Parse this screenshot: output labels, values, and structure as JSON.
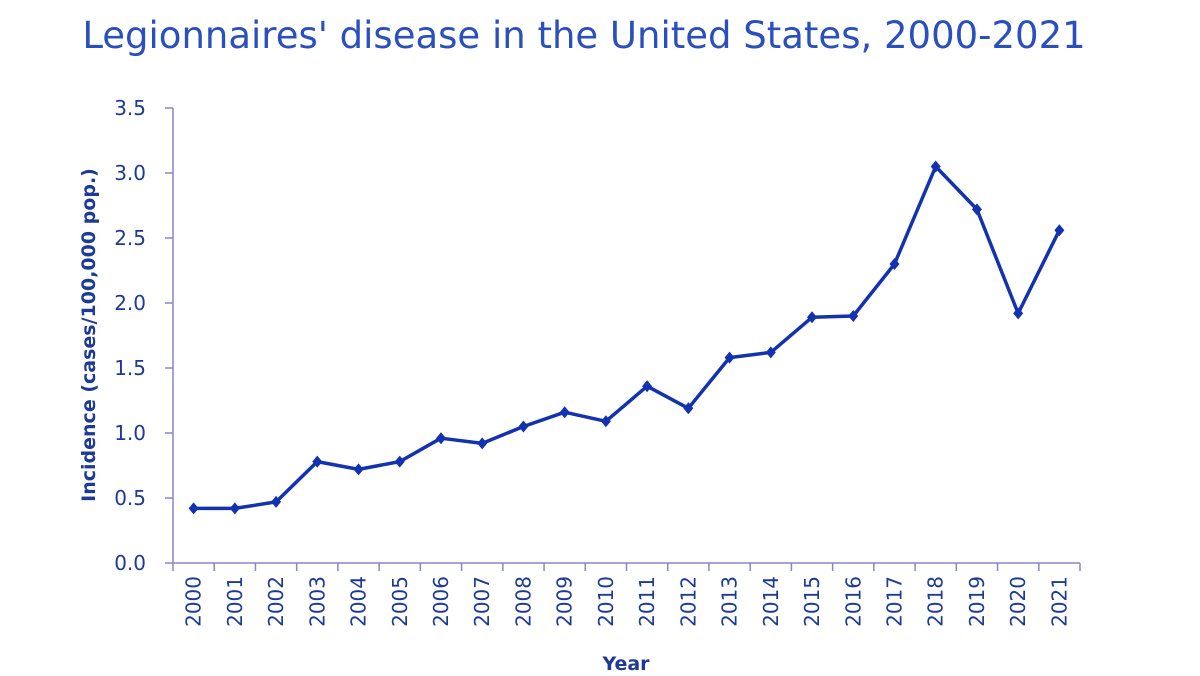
{
  "chart_data": {
    "type": "line",
    "title": "Legionnaires' disease in the United States, 2000-2021",
    "xlabel": "Year",
    "ylabel": "Incidence (cases/100,000 pop.)",
    "ylim": [
      0,
      3.5
    ],
    "yticks": [
      "0.0",
      "0.5",
      "1.0",
      "1.5",
      "2.0",
      "2.5",
      "3.0",
      "3.5"
    ],
    "grid": false,
    "marker": "diamond",
    "categories": [
      "2000",
      "2001",
      "2002",
      "2003",
      "2004",
      "2005",
      "2006",
      "2007",
      "2008",
      "2009",
      "2010",
      "2011",
      "2012",
      "2013",
      "2014",
      "2015",
      "2016",
      "2017",
      "2018",
      "2019",
      "2020",
      "2021"
    ],
    "values": [
      0.42,
      0.42,
      0.47,
      0.78,
      0.72,
      0.78,
      0.96,
      0.92,
      1.05,
      1.16,
      1.09,
      1.36,
      1.19,
      1.58,
      1.62,
      1.89,
      1.9,
      2.3,
      3.05,
      2.72,
      1.92,
      2.56
    ],
    "colors": {
      "line": "#1232b0",
      "axis": "#8a86c6",
      "text": "#1c3a96",
      "title": "#2a4fbe"
    }
  }
}
